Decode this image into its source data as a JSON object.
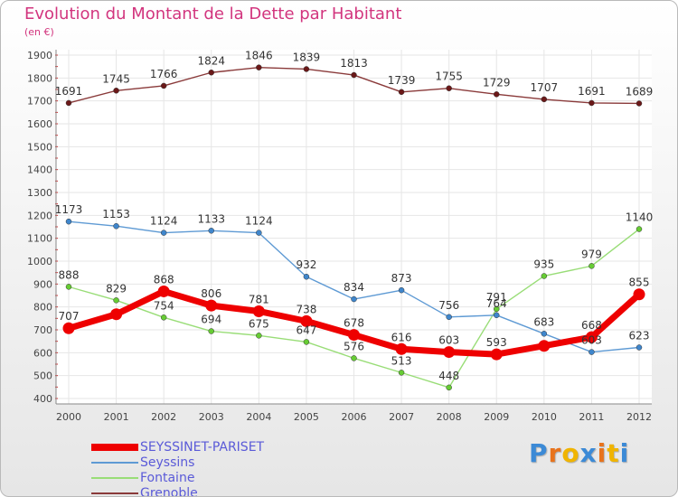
{
  "header": {
    "title": "Evolution du Montant de la Dette par Habitant",
    "subtitle": "(en €)"
  },
  "logo": {
    "letters": [
      "P",
      "r",
      "o",
      "x",
      "i",
      "t",
      "i"
    ],
    "colors": [
      "#3c8ad6",
      "#e8731c",
      "#f0b400",
      "#3c8ad6",
      "#e8731c",
      "#f0b400",
      "#3c8ad6"
    ]
  },
  "chart_data": {
    "type": "line",
    "title": "Evolution du Montant de la Dette par Habitant",
    "ylabel": "(en €)",
    "xlabel": "",
    "ylim": [
      400,
      1900
    ],
    "yticks": [
      400,
      500,
      600,
      700,
      800,
      900,
      1000,
      1100,
      1200,
      1300,
      1400,
      1500,
      1600,
      1700,
      1800,
      1900
    ],
    "grid": true,
    "legend_position": "bottom-left",
    "categories": [
      "2000",
      "2001",
      "2002",
      "2003",
      "2004",
      "2005",
      "2006",
      "2007",
      "2008",
      "2009",
      "2010",
      "2011",
      "2012"
    ],
    "series": [
      {
        "name": "SEYSSINET-PARISET",
        "color": "#ee0000",
        "lineColor": "#ee0000",
        "values": [
          707,
          768,
          868,
          806,
          781,
          738,
          678,
          616,
          603,
          593,
          630,
          668,
          855
        ],
        "labels": [
          "707",
          "",
          "868",
          "806",
          "781",
          "738",
          "678",
          "616",
          "603",
          "593",
          "",
          "668",
          "855"
        ]
      },
      {
        "name": "Seyssins",
        "color": "#3f86cc",
        "lineColor": "#5e9ad4",
        "values": [
          1173,
          1153,
          1124,
          1133,
          1124,
          932,
          834,
          873,
          756,
          764,
          683,
          603,
          623
        ],
        "labels": [
          "1173",
          "1153",
          "1124",
          "1133",
          "1124",
          "932",
          "834",
          "873",
          "756",
          "764",
          "683",
          "603",
          "623"
        ]
      },
      {
        "name": "Fontaine",
        "color": "#66cc33",
        "lineColor": "#99dd77",
        "values": [
          888,
          829,
          754,
          694,
          675,
          647,
          576,
          513,
          448,
          791,
          935,
          979,
          1140
        ],
        "labels": [
          "888",
          "829",
          "754",
          "694",
          "675",
          "647",
          "576",
          "513",
          "448",
          "791",
          "935",
          "979",
          "1140"
        ]
      },
      {
        "name": "Grenoble",
        "color": "#6b1818",
        "lineColor": "#8a3a3a",
        "values": [
          1691,
          1745,
          1766,
          1824,
          1846,
          1839,
          1813,
          1739,
          1755,
          1729,
          1707,
          1691,
          1689
        ],
        "labels": [
          "1691",
          "1745",
          "1766",
          "1824",
          "1846",
          "1839",
          "1813",
          "1739",
          "1755",
          "1729",
          "1707",
          "1691",
          "1689"
        ]
      }
    ]
  }
}
